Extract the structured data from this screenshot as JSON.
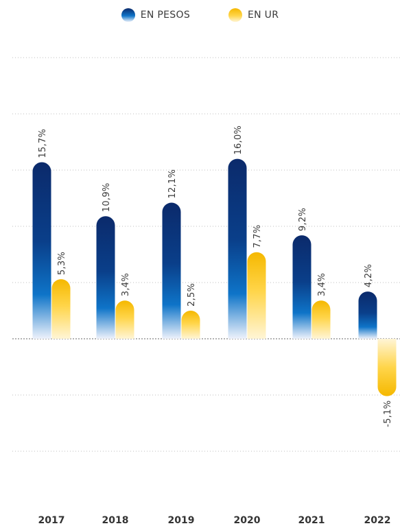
{
  "legend": [
    {
      "label": "EN PESOS",
      "color_top": "#0b2a6b",
      "color_mid": "#0e74c8",
      "color_bottom": "#eef2fb"
    },
    {
      "label": "EN UR",
      "color_top": "#f5b800",
      "color_mid": "#ffd54a",
      "color_bottom": "#fff5d6"
    }
  ],
  "chart_data": {
    "type": "bar",
    "categories": [
      "2017",
      "2018",
      "2019",
      "2020",
      "2021",
      "2022"
    ],
    "series": [
      {
        "name": "EN PESOS",
        "values": [
          15.7,
          10.9,
          12.1,
          16.0,
          9.2,
          4.2
        ],
        "labels": [
          "15,7%",
          "10,9%",
          "12,1%",
          "16,0%",
          "9,2%",
          "4,2%"
        ]
      },
      {
        "name": "EN UR",
        "values": [
          5.3,
          3.4,
          2.5,
          7.7,
          3.4,
          -5.1
        ],
        "labels": [
          "5,3%",
          "3,4%",
          "2,5%",
          "7,7%",
          "3,4%",
          "-5,1%"
        ]
      }
    ],
    "ylim": [
      -10,
      25
    ],
    "grid": true,
    "legend_position": "top-center",
    "title": "",
    "xlabel": "",
    "ylabel": ""
  }
}
